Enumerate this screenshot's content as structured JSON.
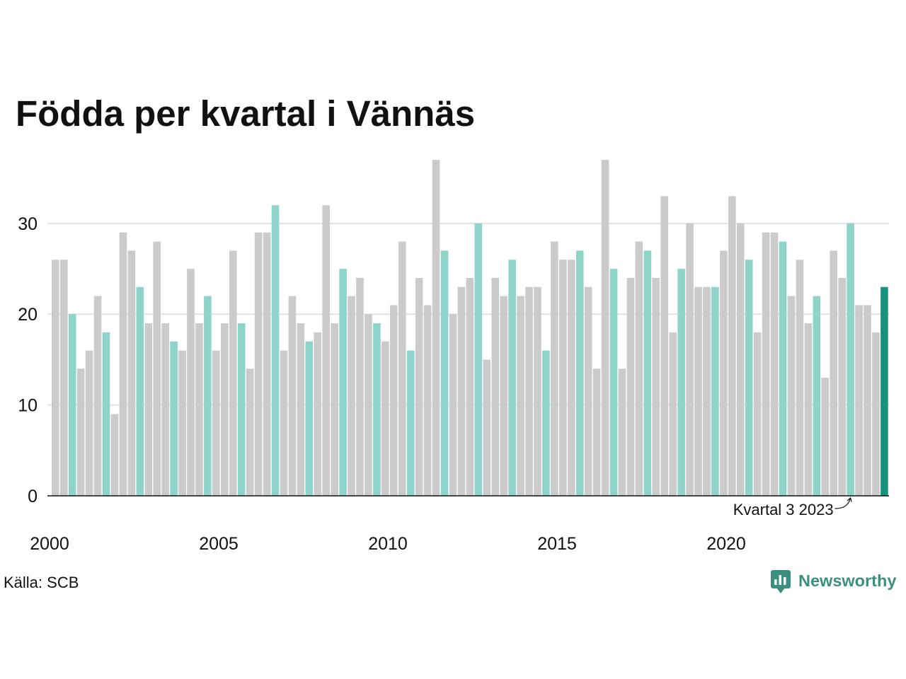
{
  "source": "Källa: SCB",
  "logo": {
    "text": "Newsworthy",
    "icon": "newsworthy-chart-bubble-icon",
    "color": "#3b8f7f"
  },
  "chart_data": {
    "type": "bar",
    "title": "Födda per kvartal i Vännäs",
    "x_ticks": [
      2000,
      2005,
      2010,
      2015,
      2020
    ],
    "y_ticks": [
      0,
      10,
      20,
      30
    ],
    "ylim": [
      0,
      37
    ],
    "grid": "horizontal",
    "legend": "none",
    "highlight_quarter": 3,
    "quarters_by_year": [
      {
        "year": 2000,
        "values": [
          26,
          26,
          20,
          14
        ]
      },
      {
        "year": 2001,
        "values": [
          16,
          22,
          18,
          9
        ]
      },
      {
        "year": 2002,
        "values": [
          29,
          27,
          23,
          19
        ]
      },
      {
        "year": 2003,
        "values": [
          28,
          19,
          17,
          16
        ]
      },
      {
        "year": 2004,
        "values": [
          25,
          19,
          22,
          16
        ]
      },
      {
        "year": 2005,
        "values": [
          19,
          27,
          19,
          14
        ]
      },
      {
        "year": 2006,
        "values": [
          29,
          29,
          32,
          16
        ]
      },
      {
        "year": 2007,
        "values": [
          22,
          19,
          17,
          18
        ]
      },
      {
        "year": 2008,
        "values": [
          32,
          19,
          25,
          22
        ]
      },
      {
        "year": 2009,
        "values": [
          24,
          20,
          19,
          17
        ]
      },
      {
        "year": 2010,
        "values": [
          21,
          28,
          16,
          24
        ]
      },
      {
        "year": 2011,
        "values": [
          21,
          37,
          27,
          20
        ]
      },
      {
        "year": 2012,
        "values": [
          23,
          24,
          30,
          15
        ]
      },
      {
        "year": 2013,
        "values": [
          24,
          22,
          26,
          22
        ]
      },
      {
        "year": 2014,
        "values": [
          23,
          23,
          16,
          28
        ]
      },
      {
        "year": 2015,
        "values": [
          26,
          26,
          27,
          23
        ]
      },
      {
        "year": 2016,
        "values": [
          14,
          37,
          25,
          14
        ]
      },
      {
        "year": 2017,
        "values": [
          24,
          28,
          27,
          24
        ]
      },
      {
        "year": 2018,
        "values": [
          33,
          18,
          25,
          30
        ]
      },
      {
        "year": 2019,
        "values": [
          23,
          23,
          23,
          27
        ]
      },
      {
        "year": 2020,
        "values": [
          33,
          30,
          26,
          18
        ]
      },
      {
        "year": 2021,
        "values": [
          29,
          29,
          28,
          22
        ]
      },
      {
        "year": 2022,
        "values": [
          26,
          19,
          22,
          13
        ]
      },
      {
        "year": 2023,
        "values": [
          27,
          24,
          30,
          21
        ]
      },
      {
        "year": 2024,
        "values": [
          21,
          18,
          23
        ]
      }
    ],
    "annotation": {
      "text": "Kvartal 3 2023",
      "year": 2023,
      "quarter": 3
    },
    "colors": {
      "bar": "#cbcbcb",
      "highlight": "#8ed4ca",
      "latest": "#16927f",
      "grid": "#e2e2e2",
      "axis": "#111111"
    }
  }
}
